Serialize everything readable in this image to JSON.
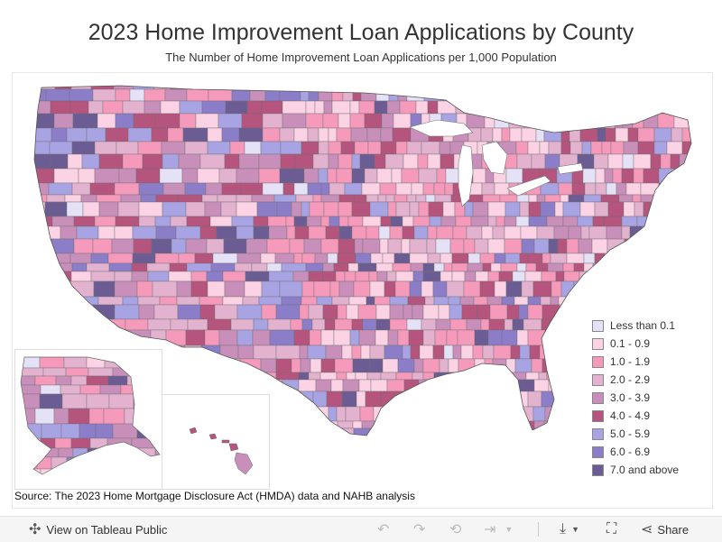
{
  "header": {
    "title": "2023 Home Improvement Loan Applications by County",
    "subtitle": "The Number of Home Improvement Loan Applications per 1,000 Population"
  },
  "legend": {
    "items": [
      {
        "label": "Less than 0.1",
        "color": "#e5e1f7"
      },
      {
        "label": "0.1 - 0.9",
        "color": "#fbd3e4"
      },
      {
        "label": "1.0 - 1.9",
        "color": "#f59abb"
      },
      {
        "label": "2.0 - 2.9",
        "color": "#e2b2cf"
      },
      {
        "label": "3.0 - 3.9",
        "color": "#c98fbb"
      },
      {
        "label": "4.0 - 4.9",
        "color": "#b5557d"
      },
      {
        "label": "5.0 - 5.9",
        "color": "#a8a3e3"
      },
      {
        "label": "6.0 - 6.9",
        "color": "#8c7dc9"
      },
      {
        "label": "7.0 and above",
        "color": "#6b5d93"
      }
    ]
  },
  "source": "Source: The 2023 Home Mortgage Disclosure Act (HMDA) data and NAHB analysis",
  "toolbar": {
    "view_label": "View on Tableau Public",
    "share_label": "Share",
    "icons": [
      "tableau-logo-icon",
      "undo-icon",
      "redo-icon",
      "revert-icon",
      "refresh-icon",
      "download-icon",
      "fullscreen-icon",
      "share-icon"
    ]
  }
}
